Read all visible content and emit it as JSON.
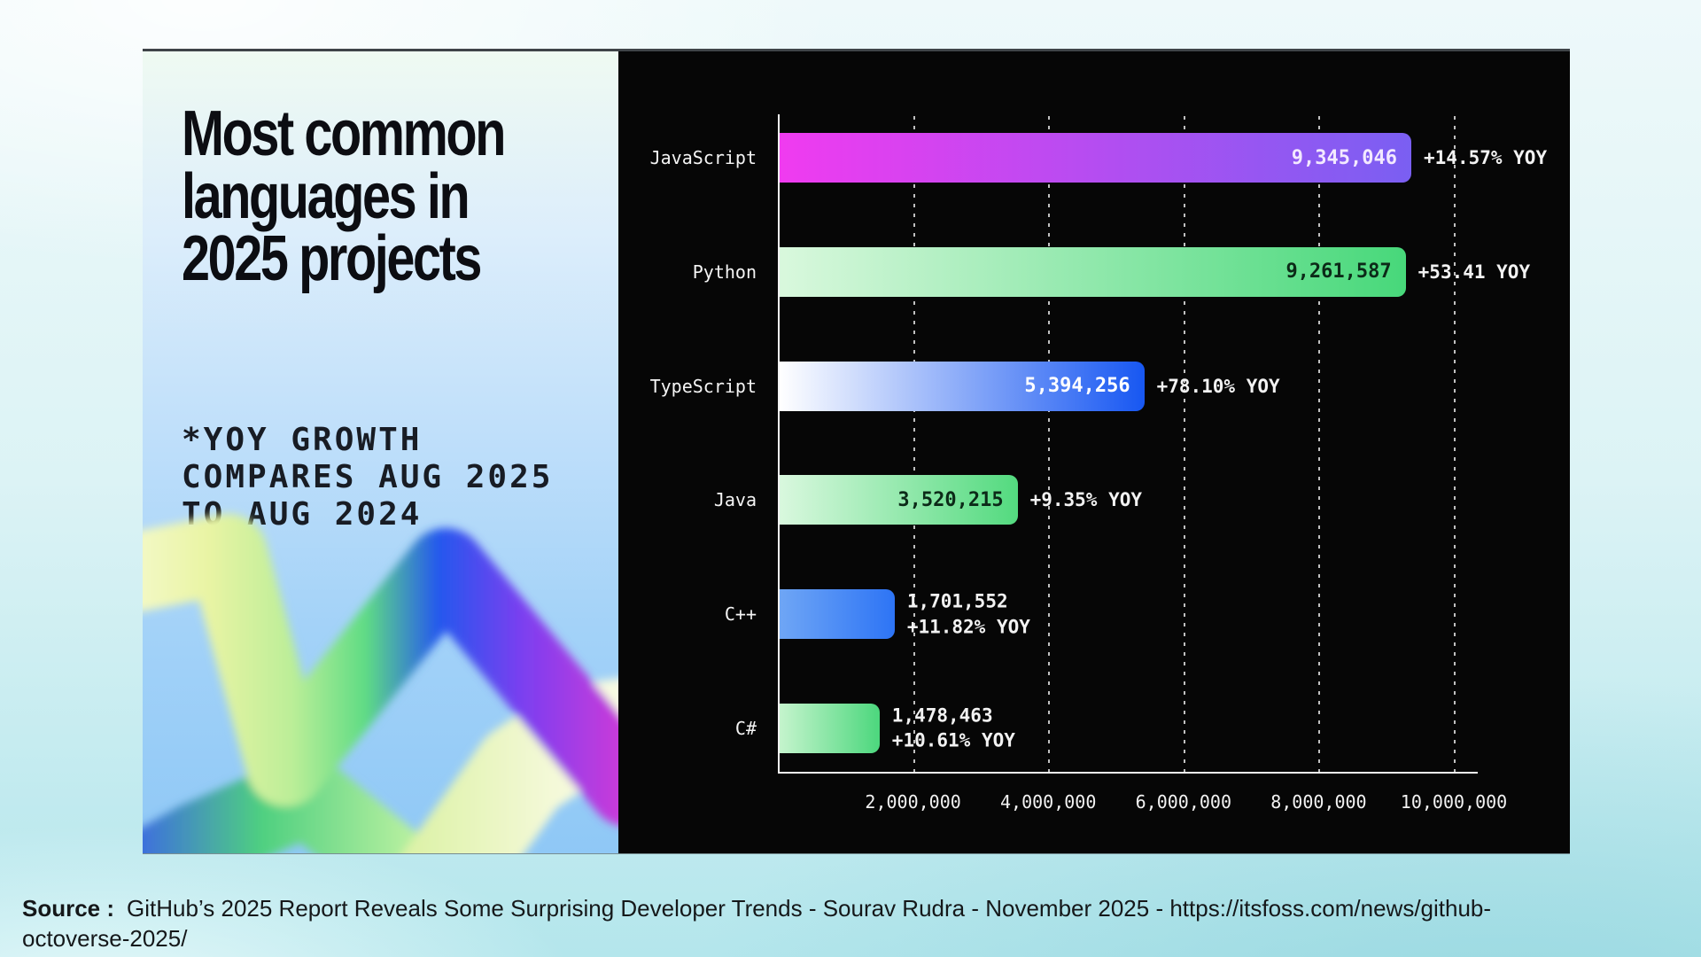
{
  "page": {
    "source": {
      "label": "Source :",
      "text": "GitHub’s 2025 Report Reveals Some Surprising Developer Trends - Sourav Rudra - November 2025 - https://itsfoss.com/news/github-octoverse-2025/"
    }
  },
  "left_panel": {
    "title_lines": [
      "Most common",
      "languages in",
      "2025 projects"
    ],
    "note_lines": [
      "*YOY GROWTH",
      "COMPARES AUG 2025",
      "TO AUG 2024"
    ]
  },
  "chart_data": {
    "type": "bar",
    "orientation": "horizontal",
    "title": "Most common languages in 2025 projects",
    "note": "*YOY growth compares Aug 2025 to Aug 2024",
    "background": "#060606",
    "grid": "dotted-vertical",
    "legend": "none",
    "axis_max": 10000000,
    "tick_step": 2000000,
    "tick_values": [
      2000000,
      4000000,
      6000000,
      8000000,
      10000000
    ],
    "tick_labels": [
      "2,000,000",
      "4,000,000",
      "6,000,000",
      "8,000,000",
      "10,000,000"
    ],
    "categories": [
      "JavaScript",
      "Python",
      "TypeScript",
      "Java",
      "C++",
      "C#"
    ],
    "values": [
      9345046,
      9261587,
      5394256,
      3520215,
      1701552,
      1478463
    ],
    "rows": [
      {
        "label": "JavaScript",
        "value": 9345046,
        "value_label": "9,345,046",
        "growth_label": "+14.57% YOY",
        "bar_from": "#f03bf0",
        "bar_to": "#7a5ff2",
        "value_color": "#f3e9ff",
        "value_inside": true
      },
      {
        "label": "Python",
        "value": 9261587,
        "value_label": "9,261,587",
        "growth_label": "+53.41 YOY",
        "bar_from": "#d9f8dd",
        "bar_to": "#47d87a",
        "value_color": "#0c2a18",
        "value_inside": true
      },
      {
        "label": "TypeScript",
        "value": 5394256,
        "value_label": "5,394,256",
        "growth_label": "+78.10% YOY",
        "bar_from": "#ffffff",
        "bar_to": "#1757f2",
        "value_color": "#ffffff",
        "value_inside": true
      },
      {
        "label": "Java",
        "value": 3520215,
        "value_label": "3,520,215",
        "growth_label": "+9.35% YOY",
        "bar_from": "#d9f8de",
        "bar_to": "#53da7f",
        "value_color": "#0c2a18",
        "value_inside": true
      },
      {
        "label": "C++",
        "value": 1701552,
        "value_label": "1,701,552",
        "growth_label": "+11.82% YOY",
        "bar_from": "#6fa6f5",
        "bar_to": "#2d74f5",
        "value_color": "#f2f2f2",
        "value_inside": false
      },
      {
        "label": "C#",
        "value": 1478463,
        "value_label": "1,478,463",
        "growth_label": "+10.61% YOY",
        "bar_from": "#c5f4cd",
        "bar_to": "#4cd77d",
        "value_color": "#f2f2f2",
        "value_inside": false
      }
    ]
  }
}
